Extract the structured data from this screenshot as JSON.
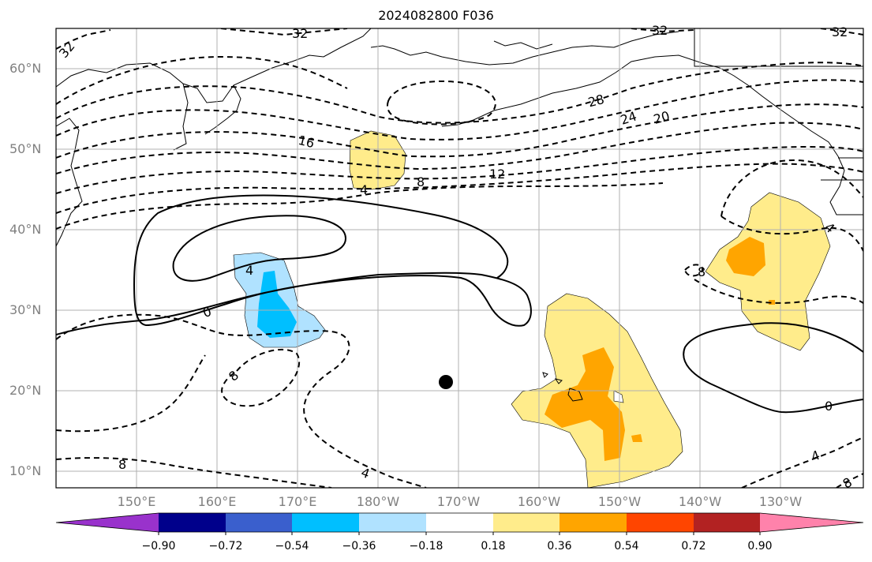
{
  "title": "2024082800 F036",
  "lat_labels": [
    "60°N",
    "50°N",
    "40°N",
    "30°N",
    "20°N",
    "10°N"
  ],
  "lon_labels": [
    "150°E",
    "160°E",
    "170°E",
    "180°W",
    "170°W",
    "160°W",
    "150°W",
    "140°W",
    "130°W"
  ],
  "contour_labels": [
    "32",
    "32",
    "32",
    "32",
    "28",
    "24",
    "20",
    "16",
    "12",
    "8",
    "4",
    "4",
    "0",
    "0",
    "8",
    "8",
    "8",
    "4",
    "4",
    "4",
    "8"
  ],
  "colorbar": {
    "ticks": [
      "−0.90",
      "−0.72",
      "−0.54",
      "−0.36",
      "−0.18",
      "0.18",
      "0.36",
      "0.54",
      "0.72",
      "0.90"
    ],
    "colors": [
      "#9932cc",
      "#00008b",
      "#3a5fcd",
      "#00bfff",
      "#b0e2ff",
      "#ffffff",
      "#ffec8b",
      "#ffa500",
      "#ff4500",
      "#b22222",
      "#ff82ab"
    ]
  },
  "marker": "storm-position-dot"
}
